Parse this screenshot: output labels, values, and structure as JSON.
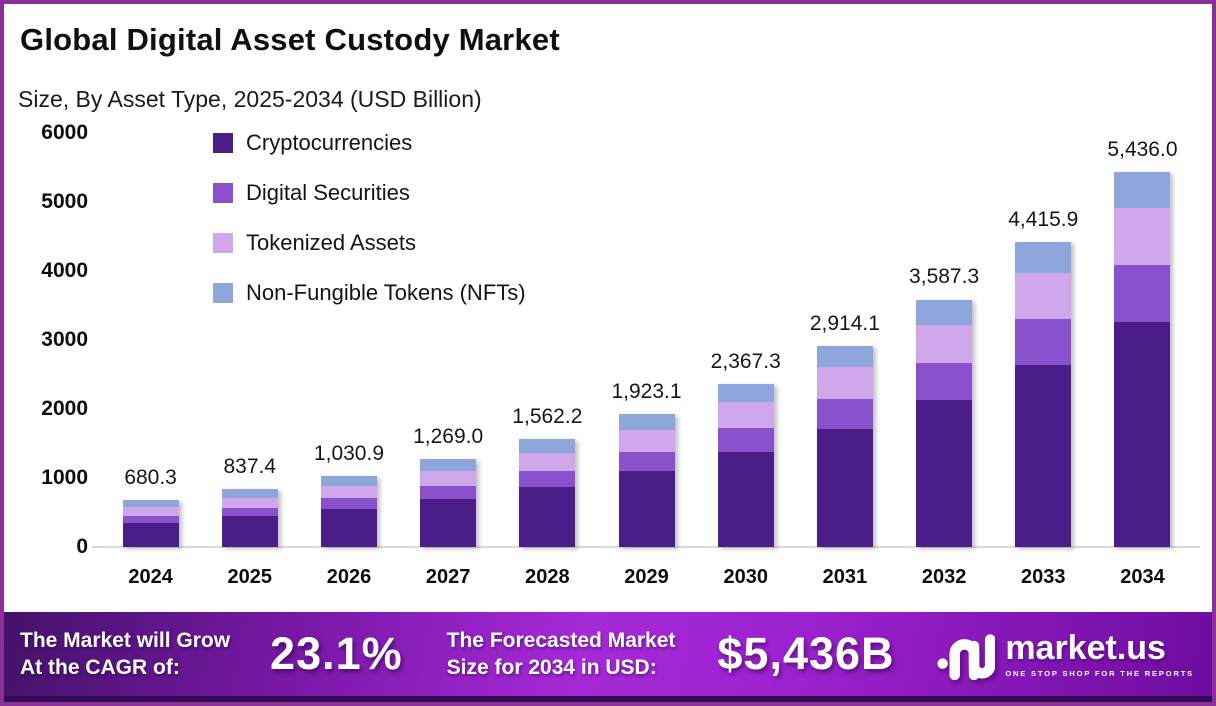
{
  "header": {
    "title": "Global Digital Asset Custody Market",
    "subtitle": "Size, By Asset Type, 2025-2034 (USD Billion)"
  },
  "legend": [
    {
      "label": "Cryptocurrencies",
      "color": "#4a1d89"
    },
    {
      "label": "Digital Securities",
      "color": "#8951cb"
    },
    {
      "label": "Tokenized Assets",
      "color": "#cfa7ea"
    },
    {
      "label": "Non-Fungible Tokens (NFTs)",
      "color": "#8ea6dc"
    }
  ],
  "chart_data": {
    "type": "bar",
    "stacked": true,
    "title": "Global Digital Asset Custody Market",
    "subtitle": "Size, By Asset Type, 2025-2034 (USD Billion)",
    "xlabel": "",
    "ylabel": "USD Billion",
    "ylim": [
      0,
      6000
    ],
    "y_ticks": [
      0,
      1000,
      2000,
      3000,
      4000,
      5000,
      6000
    ],
    "grid": false,
    "legend_position": "top-left",
    "categories": [
      "2024",
      "2025",
      "2026",
      "2027",
      "2028",
      "2029",
      "2030",
      "2031",
      "2032",
      "2033",
      "2034"
    ],
    "totals": [
      680.3,
      837.4,
      1030.9,
      1269.0,
      1562.2,
      1923.1,
      2367.3,
      2914.1,
      3587.3,
      4415.9,
      5436.0
    ],
    "total_labels": [
      "680.3",
      "837.4",
      "1,030.9",
      "1,269.0",
      "1,562.2",
      "1,923.1",
      "2,367.3",
      "2,914.1",
      "3,587.3",
      "4,415.9",
      "5,436.0"
    ],
    "series": [
      {
        "name": "Cryptocurrencies",
        "color": "#4a1d89",
        "values": [
          353.8,
          443.8,
          556.7,
          697.9,
          874.8,
          1096.2,
          1373.0,
          1710.6,
          2127.3,
          2636.3,
          3261.6
        ]
      },
      {
        "name": "Digital Securities",
        "color": "#8951cb",
        "values": [
          98.6,
          121.4,
          149.5,
          184.0,
          226.5,
          280.8,
          348.0,
          434.2,
          538.1,
          666.8,
          831.7
        ]
      },
      {
        "name": "Tokenized Assets",
        "color": "#cfa7ea",
        "values": [
          122.5,
          148.2,
          179.4,
          217.0,
          262.5,
          315.4,
          378.8,
          457.5,
          556.0,
          675.6,
          820.8
        ]
      },
      {
        "name": "Non-Fungible Tokens (NFTs)",
        "color": "#8ea6dc",
        "values": [
          105.4,
          124.0,
          145.3,
          170.1,
          198.4,
          230.7,
          267.5,
          311.8,
          365.9,
          437.2,
          521.9
        ]
      }
    ]
  },
  "banner": {
    "cagr_label_line1": "The Market will Grow",
    "cagr_label_line2": "At the CAGR of:",
    "cagr_value": "23.1%",
    "forecast_label_line1": "The Forecasted Market",
    "forecast_label_line2": "Size for 2034 in USD:",
    "forecast_value": "$5,436B",
    "logo_text": "market.us",
    "logo_tagline": "ONE STOP SHOP FOR THE REPORTS"
  },
  "colors": {
    "frame_border": "#8a3198",
    "banner_gradient_start": "#44126a",
    "banner_gradient_mid": "#a629d8",
    "banner_gradient_end": "#6e0c9f",
    "baseline": "#d9d9d9"
  }
}
